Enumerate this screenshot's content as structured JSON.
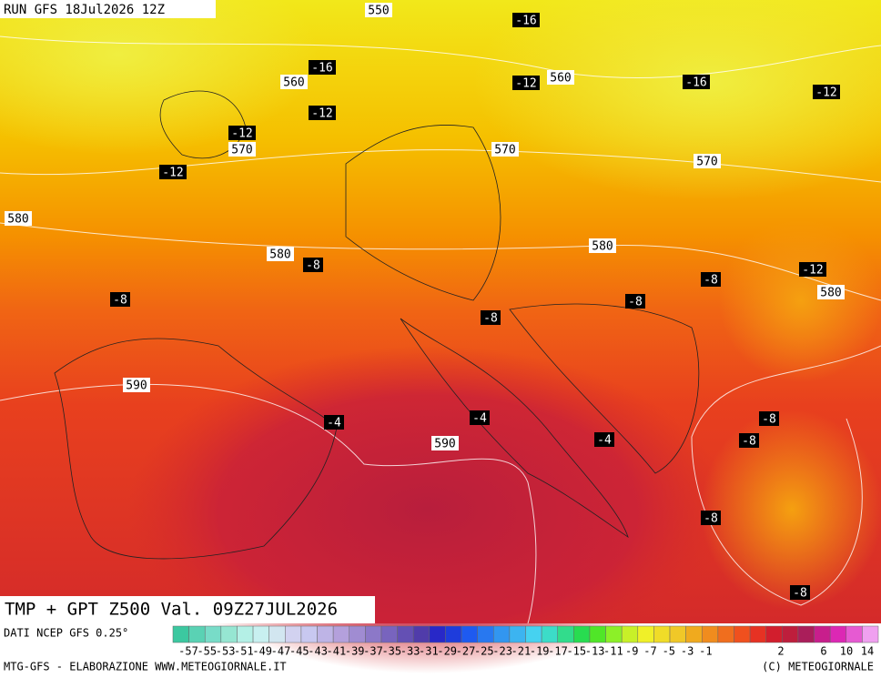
{
  "header": {
    "run": "RUN GFS 18Jul2026 12Z"
  },
  "title": "TMP + GPT Z500 Val. 09Z27JUL2026",
  "height_labels": [
    "550",
    "560",
    "560",
    "570",
    "570",
    "570",
    "580",
    "580",
    "580",
    "580",
    "590",
    "590"
  ],
  "temperature_labels": [
    "-16",
    "-16",
    "-12",
    "-16",
    "-12",
    "-12",
    "-12",
    "-12",
    "-8",
    "-8",
    "-8",
    "-8",
    "-8",
    "-12",
    "-4",
    "-4",
    "-4",
    "-8",
    "-8",
    "-8",
    "-8"
  ],
  "color_scale": {
    "colors": [
      "#3cc8a0",
      "#5ad2b4",
      "#78dcc8",
      "#96e6d2",
      "#b4f0e6",
      "#c8f0f0",
      "#d2e6f0",
      "#d2d2f0",
      "#c8c8f0",
      "#beb4e6",
      "#b4a0dc",
      "#a08cd2",
      "#8c78c8",
      "#7864be",
      "#6450b4",
      "#503caa",
      "#2828c8",
      "#1e3cdc",
      "#1e5af0",
      "#2878f0",
      "#3296f0",
      "#3cb4f0",
      "#46d2f0",
      "#3cdcc8",
      "#32dc8c",
      "#28dc50",
      "#50e628",
      "#8cf028",
      "#c8f028",
      "#f0f028",
      "#f0dc28",
      "#f0c828",
      "#f0aa1e",
      "#f08c1e",
      "#f06e1e",
      "#f0501e",
      "#e63223",
      "#d21e2d",
      "#be1e3c",
      "#aa1e5a",
      "#c81e8c",
      "#dc28b4",
      "#e65ad2",
      "#f0a0f0"
    ],
    "labels": [
      -57,
      -55,
      -53,
      -51,
      -49,
      -47,
      -45,
      -43,
      -41,
      -39,
      -37,
      -35,
      -33,
      -31,
      -29,
      -27,
      -25,
      -23,
      -21,
      -19,
      -17,
      -15,
      -13,
      -11,
      -9,
      -7,
      -5,
      -3,
      -1,
      2,
      6,
      10,
      14
    ]
  },
  "footer": {
    "source": "DATI NCEP GFS 0.25°",
    "credit": "MTG-GFS - ELABORAZIONE WWW.METEOGIORNALE.IT",
    "copyright": "(C) METEOGIORNALE"
  }
}
